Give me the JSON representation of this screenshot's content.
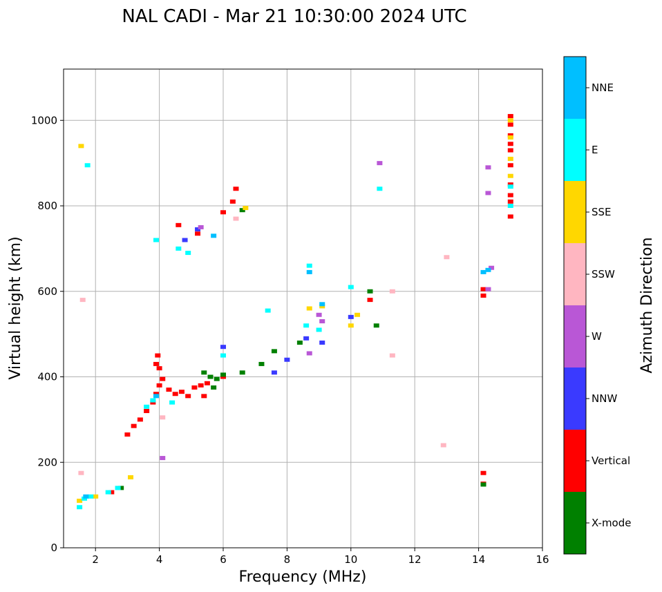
{
  "chart_data": {
    "type": "scatter",
    "title": "NAL CADI - Mar 21 10:30:00 2024 UTC",
    "xlabel": "Frequency (MHz)",
    "ylabel": "Virtual height (km)",
    "xlim": [
      1,
      16
    ],
    "ylim": [
      0,
      1120
    ],
    "xticks": [
      2,
      4,
      6,
      8,
      10,
      12,
      14,
      16
    ],
    "yticks": [
      0,
      200,
      400,
      600,
      800,
      1000
    ],
    "grid": true,
    "colorbar": {
      "label": "Azimuth Direction",
      "categories": [
        {
          "name": "X-mode",
          "color": "#008000"
        },
        {
          "name": "Vertical",
          "color": "#ff0000"
        },
        {
          "name": "NNW",
          "color": "#3a3aff"
        },
        {
          "name": "W",
          "color": "#b957d6"
        },
        {
          "name": "SSW",
          "color": "#ffb6c1"
        },
        {
          "name": "SSE",
          "color": "#ffd700"
        },
        {
          "name": "E",
          "color": "#00ffff"
        },
        {
          "name": "NNE",
          "color": "#00bfff"
        }
      ]
    },
    "series": [
      {
        "name": "Vertical",
        "points": [
          [
            3.0,
            265
          ],
          [
            3.2,
            285
          ],
          [
            3.4,
            300
          ],
          [
            3.6,
            320
          ],
          [
            3.8,
            340
          ],
          [
            3.9,
            360
          ],
          [
            4.0,
            380
          ],
          [
            4.1,
            395
          ],
          [
            4.3,
            370
          ],
          [
            4.5,
            360
          ],
          [
            4.7,
            365
          ],
          [
            4.9,
            355
          ],
          [
            5.1,
            375
          ],
          [
            5.3,
            380
          ],
          [
            5.5,
            385
          ],
          [
            3.95,
            450
          ],
          [
            3.9,
            430
          ],
          [
            4.0,
            420
          ],
          [
            6.0,
            400
          ],
          [
            6.4,
            840
          ],
          [
            6.3,
            810
          ],
          [
            6.0,
            785
          ],
          [
            4.6,
            755
          ],
          [
            5.2,
            735
          ],
          [
            14.15,
            175
          ],
          [
            14.15,
            150
          ],
          [
            14.15,
            605
          ],
          [
            14.15,
            590
          ],
          [
            15.0,
            1010
          ],
          [
            15.0,
            990
          ],
          [
            15.0,
            965
          ],
          [
            15.0,
            945
          ],
          [
            15.0,
            930
          ],
          [
            15.0,
            895
          ],
          [
            15.0,
            850
          ],
          [
            15.0,
            825
          ],
          [
            15.0,
            810
          ],
          [
            15.0,
            775
          ],
          [
            10.6,
            580
          ],
          [
            2.5,
            130
          ],
          [
            5.4,
            355
          ]
        ]
      },
      {
        "name": "X-mode",
        "points": [
          [
            5.4,
            410
          ],
          [
            5.6,
            400
          ],
          [
            5.8,
            395
          ],
          [
            6.0,
            405
          ],
          [
            6.6,
            410
          ],
          [
            7.2,
            430
          ],
          [
            7.6,
            460
          ],
          [
            8.4,
            480
          ],
          [
            10.6,
            600
          ],
          [
            10.8,
            520
          ],
          [
            6.6,
            790
          ],
          [
            5.7,
            375
          ],
          [
            14.15,
            148
          ],
          [
            2.8,
            140
          ]
        ]
      },
      {
        "name": "NNW",
        "points": [
          [
            6.0,
            470
          ],
          [
            7.6,
            410
          ],
          [
            8.0,
            440
          ],
          [
            8.6,
            490
          ],
          [
            9.1,
            480
          ],
          [
            10.0,
            540
          ],
          [
            4.8,
            720
          ],
          [
            5.2,
            745
          ]
        ]
      },
      {
        "name": "W",
        "points": [
          [
            4.1,
            210
          ],
          [
            8.7,
            455
          ],
          [
            9.1,
            530
          ],
          [
            10.9,
            900
          ],
          [
            14.3,
            890
          ],
          [
            14.3,
            830
          ],
          [
            14.3,
            605
          ],
          [
            9.0,
            545
          ],
          [
            5.3,
            750
          ],
          [
            14.4,
            655
          ]
        ]
      },
      {
        "name": "SSW",
        "points": [
          [
            1.55,
            175
          ],
          [
            1.6,
            580
          ],
          [
            4.1,
            305
          ],
          [
            11.3,
            450
          ],
          [
            12.9,
            240
          ],
          [
            13.0,
            680
          ],
          [
            11.3,
            600
          ],
          [
            6.4,
            770
          ],
          [
            2.7,
            140
          ]
        ]
      },
      {
        "name": "SSE",
        "points": [
          [
            1.55,
            940
          ],
          [
            2.0,
            120
          ],
          [
            3.1,
            165
          ],
          [
            8.7,
            560
          ],
          [
            9.1,
            565
          ],
          [
            10.0,
            520
          ],
          [
            10.2,
            545
          ],
          [
            15.0,
            1000
          ],
          [
            15.0,
            960
          ],
          [
            15.0,
            910
          ],
          [
            15.0,
            870
          ],
          [
            6.7,
            795
          ],
          [
            1.5,
            110
          ]
        ]
      },
      {
        "name": "E",
        "points": [
          [
            1.5,
            95
          ],
          [
            1.65,
            115
          ],
          [
            1.85,
            120
          ],
          [
            2.4,
            130
          ],
          [
            2.7,
            140
          ],
          [
            3.6,
            330
          ],
          [
            3.8,
            345
          ],
          [
            4.4,
            340
          ],
          [
            6.0,
            450
          ],
          [
            8.6,
            520
          ],
          [
            9.0,
            510
          ],
          [
            10.0,
            610
          ],
          [
            10.9,
            840
          ],
          [
            15.0,
            845
          ],
          [
            15.0,
            800
          ],
          [
            3.9,
            720
          ],
          [
            4.6,
            700
          ],
          [
            4.9,
            690
          ],
          [
            1.75,
            895
          ],
          [
            8.7,
            660
          ],
          [
            7.4,
            555
          ]
        ]
      },
      {
        "name": "NNE",
        "points": [
          [
            1.7,
            120
          ],
          [
            3.9,
            355
          ],
          [
            14.15,
            645
          ],
          [
            14.3,
            650
          ],
          [
            8.7,
            645
          ],
          [
            5.7,
            730
          ],
          [
            9.1,
            570
          ]
        ]
      }
    ]
  }
}
